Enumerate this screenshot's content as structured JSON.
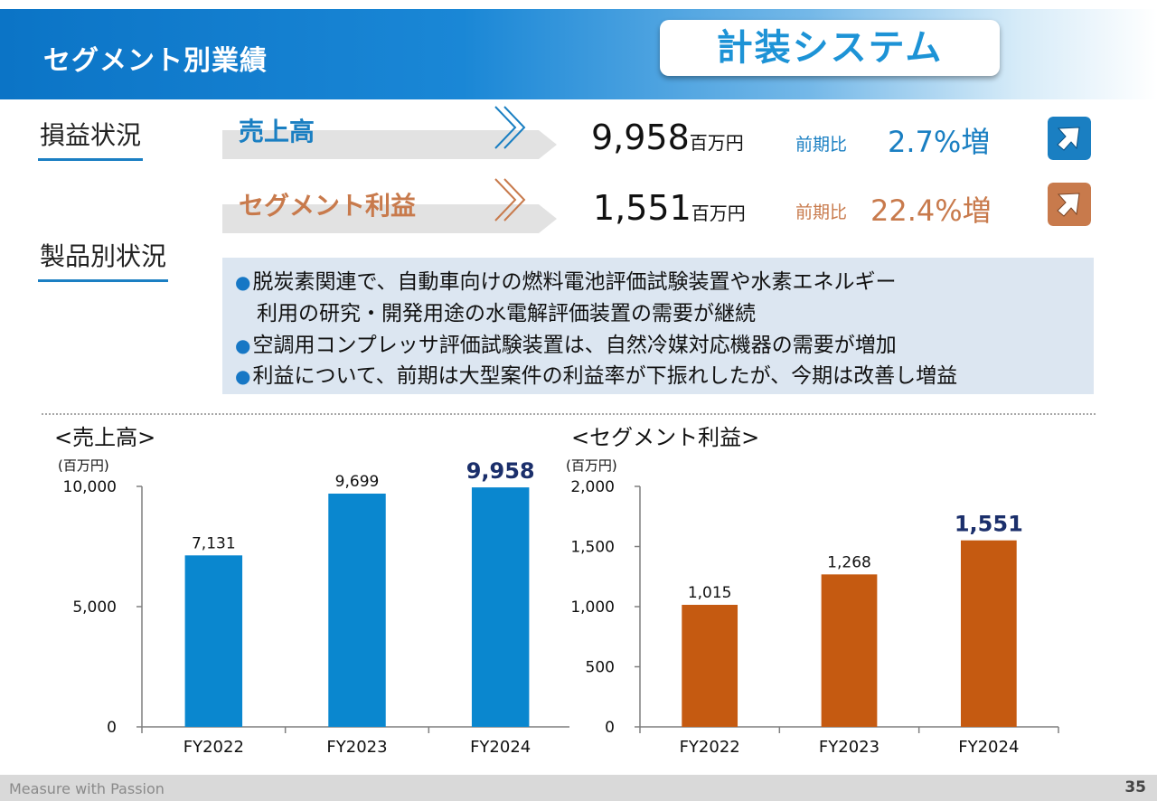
{
  "header": {
    "title": "セグメント別業績",
    "segment": "計装システム"
  },
  "sections": {
    "performance": "損益状況",
    "products": "製品別状況"
  },
  "kpis": [
    {
      "label": "売上高",
      "value": "9,958",
      "unit": "百万円",
      "comparison_label": "前期比",
      "comparison_value": "2.7%増",
      "color": "#1a7fc2",
      "icon": "up-arrow-icon"
    },
    {
      "label": "セグメント利益",
      "value": "1,551",
      "unit": "百万円",
      "comparison_label": "前期比",
      "comparison_value": "22.4%増",
      "color": "#c87a4c",
      "icon": "up-arrow-icon"
    }
  ],
  "bullets": [
    {
      "text": "脱炭素関連で、自動車向けの燃料電池評価試験装置や水素エネルギー",
      "marker": "●"
    },
    {
      "text": "利用の研究・開発用途の水電解評価装置の需要が継続",
      "marker": ""
    },
    {
      "text": "空調用コンプレッサ評価試験装置は、自然冷媒対応機器の需要が増加",
      "marker": "●"
    },
    {
      "text": "利益について、前期は大型案件の利益率が下振れしたが、今期は改善し増益",
      "marker": "●"
    }
  ],
  "chart_data": [
    {
      "type": "bar",
      "title": "<売上高>",
      "unit_label": "(百万円)",
      "categories": [
        "FY2022",
        "FY2023",
        "FY2024"
      ],
      "values": [
        7131,
        9699,
        9958
      ],
      "value_labels": [
        "7,131",
        "9,699",
        "9,958"
      ],
      "highlight_index": 2,
      "ylim": [
        0,
        10000
      ],
      "yticks": [
        0,
        5000,
        10000
      ],
      "ytick_labels": [
        "0",
        "5,000",
        "10,000"
      ],
      "bar_color": "#0a87cf",
      "highlight_label_color": "#1b2f6b"
    },
    {
      "type": "bar",
      "title": "<セグメント利益>",
      "unit_label": "(百万円)",
      "categories": [
        "FY2022",
        "FY2023",
        "FY2024"
      ],
      "values": [
        1015,
        1268,
        1551
      ],
      "value_labels": [
        "1,015",
        "1,268",
        "1,551"
      ],
      "highlight_index": 2,
      "ylim": [
        0,
        2000
      ],
      "yticks": [
        0,
        500,
        1000,
        1500,
        2000
      ],
      "ytick_labels": [
        "0",
        "500",
        "1,000",
        "1,500",
        "2,000"
      ],
      "bar_color": "#c55a11",
      "highlight_label_color": "#1b2f6b"
    }
  ],
  "footer": {
    "tagline": "Measure with Passion",
    "page": "35"
  }
}
